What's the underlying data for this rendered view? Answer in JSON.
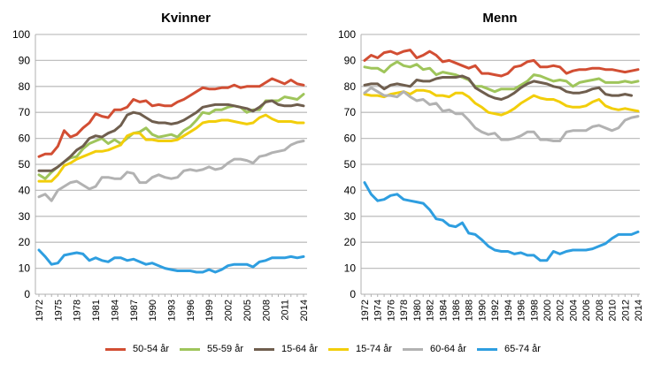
{
  "chart_data": [
    {
      "type": "line",
      "title": "Kvinner",
      "xlabel": "",
      "ylabel": "",
      "ylim": [
        0,
        100
      ],
      "yticks": [
        0,
        10,
        20,
        30,
        40,
        50,
        60,
        70,
        80,
        90,
        100
      ],
      "grid": true,
      "x": [
        1972,
        1973,
        1974,
        1975,
        1976,
        1977,
        1978,
        1979,
        1980,
        1981,
        1982,
        1983,
        1984,
        1985,
        1986,
        1987,
        1988,
        1989,
        1990,
        1991,
        1992,
        1993,
        1994,
        1995,
        1996,
        1997,
        1998,
        1999,
        2000,
        2001,
        2002,
        2003,
        2004,
        2005,
        2006,
        2007,
        2008,
        2009,
        2010,
        2011,
        2012,
        2013,
        2014
      ],
      "xtick_labels": [
        "1972",
        "1975",
        "1978",
        "1981",
        "1984",
        "1987",
        "1990",
        "1993",
        "1996",
        "1999",
        "2002",
        "2005",
        "2008",
        "2011",
        "2014"
      ],
      "series": [
        {
          "name": "50-54 år",
          "color": "#d24e33",
          "values": [
            53,
            54,
            54,
            57,
            63,
            60.5,
            61.5,
            64,
            66,
            69.5,
            68.5,
            68,
            71,
            71,
            72,
            75,
            74,
            74.5,
            72.5,
            73,
            72.5,
            72.5,
            74,
            75,
            76.5,
            78,
            79.5,
            79,
            79,
            79.5,
            79.5,
            80.5,
            79.5,
            80,
            80,
            80,
            81.5,
            83,
            82,
            81,
            82.5,
            81,
            80.5
          ]
        },
        {
          "name": "55-59 år",
          "color": "#9fc55b",
          "values": [
            46,
            44.5,
            47,
            49,
            51,
            52.5,
            53,
            56,
            58,
            59,
            60,
            58,
            59.5,
            58,
            60,
            62,
            62.5,
            64,
            61.5,
            60.5,
            61,
            61.5,
            60.5,
            63,
            64.5,
            67,
            70,
            69.5,
            71,
            71,
            72,
            72.5,
            72,
            70,
            71,
            71,
            74.5,
            74.5,
            74.5,
            76,
            75.5,
            75,
            77
          ]
        },
        {
          "name": "15-64 år",
          "color": "#6f5e4e",
          "values": [
            47.5,
            47.5,
            47.5,
            49,
            51,
            53,
            55.5,
            57,
            60,
            61,
            60.5,
            62,
            63,
            65,
            69,
            70,
            69.5,
            68,
            66.5,
            66,
            66,
            65.5,
            66,
            67,
            68.5,
            70,
            72,
            72.5,
            73,
            73,
            73,
            72.5,
            72,
            71.5,
            70.5,
            72,
            74,
            74.5,
            73,
            72.5,
            72.5,
            73,
            72.5
          ]
        },
        {
          "name": "15-74 år",
          "color": "#f2ce0b",
          "values": [
            43.5,
            43.5,
            43.5,
            46,
            49.5,
            50.5,
            52,
            53,
            54,
            55,
            55,
            55.5,
            56.5,
            57.5,
            61,
            62,
            62,
            59.5,
            59.5,
            59,
            59,
            59,
            59.5,
            61,
            62.5,
            64,
            66,
            66.5,
            66.5,
            67,
            67,
            66.5,
            66,
            65.5,
            66,
            68,
            69,
            67.5,
            66.5,
            66.5,
            66.5,
            66,
            66
          ]
        },
        {
          "name": "60-64 år",
          "color": "#b2b2b2",
          "values": [
            37.5,
            38.5,
            36,
            40,
            41.5,
            43,
            43.5,
            42,
            40.5,
            41.5,
            45,
            45,
            44.5,
            44.5,
            47,
            46.5,
            43,
            43,
            45,
            46,
            45,
            44.5,
            45,
            47.5,
            48,
            47.5,
            48,
            49,
            48,
            48.5,
            50.5,
            52,
            52,
            51.5,
            50.5,
            53,
            53.5,
            54.5,
            55,
            55.5,
            57.5,
            58.5,
            59
          ]
        },
        {
          "name": "65-74 år",
          "color": "#2e9ee0",
          "values": [
            17,
            14.5,
            11.5,
            12,
            15,
            15.5,
            16,
            15.5,
            13,
            14,
            13,
            12.5,
            14,
            14,
            13,
            13.5,
            12.5,
            11.5,
            12,
            11,
            10,
            9.5,
            9,
            9,
            9,
            8.5,
            8.5,
            9.5,
            8.5,
            9.5,
            11,
            11.5,
            11.5,
            11.5,
            10.5,
            12.5,
            13,
            14,
            14,
            14,
            14.5,
            14,
            14.5
          ]
        }
      ]
    },
    {
      "type": "line",
      "title": "Menn",
      "xlabel": "",
      "ylabel": "",
      "ylim": [
        0,
        100
      ],
      "yticks": [
        0,
        10,
        20,
        30,
        40,
        50,
        60,
        70,
        80,
        90,
        100
      ],
      "grid": true,
      "x": [
        1972,
        1973,
        1974,
        1975,
        1976,
        1977,
        1978,
        1979,
        1980,
        1981,
        1982,
        1983,
        1984,
        1985,
        1986,
        1987,
        1988,
        1989,
        1990,
        1991,
        1992,
        1993,
        1994,
        1995,
        1996,
        1997,
        1998,
        1999,
        2000,
        2001,
        2002,
        2003,
        2004,
        2005,
        2006,
        2007,
        2008,
        2009,
        2010,
        2011,
        2012,
        2013,
        2014
      ],
      "xtick_labels": [
        "1972",
        "1974",
        "1976",
        "1978",
        "1980",
        "1982",
        "1984",
        "1986",
        "1988",
        "1990",
        "1992",
        "1994",
        "1996",
        "1998",
        "2000",
        "2002",
        "2004",
        "2006",
        "2008",
        "2010",
        "2012",
        "2014"
      ],
      "series": [
        {
          "name": "50-54 år",
          "color": "#d24e33",
          "values": [
            90,
            92,
            91,
            93,
            93.5,
            92.5,
            93.5,
            94,
            91,
            92,
            93.5,
            92,
            89.5,
            90,
            89,
            88,
            87,
            88,
            85,
            85,
            84.5,
            84,
            85,
            87.5,
            88,
            89.5,
            90,
            87.5,
            87.5,
            88,
            87.5,
            85,
            86,
            86.5,
            86.5,
            87,
            87,
            86.5,
            86.5,
            86,
            85.5,
            86,
            86.5
          ]
        },
        {
          "name": "55-59 år",
          "color": "#9fc55b",
          "values": [
            87.5,
            87,
            87,
            85.5,
            88,
            89.5,
            88,
            87.5,
            88.5,
            86.5,
            87,
            84.5,
            85.5,
            85,
            84.5,
            83.5,
            82.5,
            80,
            80,
            79,
            78,
            79,
            79,
            79,
            80.5,
            82,
            84.5,
            84,
            83,
            82,
            82.5,
            82,
            80,
            81.5,
            82,
            82.5,
            83,
            81.5,
            81.5,
            81.5,
            82,
            81.5,
            82
          ]
        },
        {
          "name": "15-64 år",
          "color": "#6f5e4e",
          "values": [
            80.5,
            81,
            81,
            79,
            80.5,
            81,
            80.5,
            80,
            82.5,
            82,
            82,
            83,
            83.5,
            83.5,
            83.5,
            84,
            83,
            79.5,
            78,
            76.5,
            75.5,
            75,
            76,
            77.5,
            79.5,
            81,
            82,
            81.5,
            81,
            80,
            79.5,
            78,
            77.5,
            77.5,
            78,
            79,
            79.5,
            77,
            76.5,
            76.5,
            77,
            76.5,
            null
          ]
        },
        {
          "name": "15-74 år",
          "color": "#f2ce0b",
          "values": [
            77,
            76.5,
            76.5,
            76,
            77,
            77.5,
            78,
            77,
            78.5,
            78.5,
            78,
            76.5,
            76.5,
            76,
            77.5,
            77.5,
            76,
            73.5,
            72,
            70,
            69.5,
            69,
            70,
            71.5,
            73.5,
            75,
            76.5,
            75.5,
            75,
            75,
            74,
            72.5,
            72,
            72,
            72.5,
            74,
            75,
            72.5,
            71.5,
            71,
            71.5,
            71,
            70.5
          ]
        },
        {
          "name": "60-64 år",
          "color": "#b2b2b2",
          "values": [
            77.5,
            79.5,
            78,
            76.5,
            76.5,
            76,
            78,
            76,
            74.5,
            75,
            73,
            73.5,
            70.5,
            71,
            69.5,
            69.5,
            67,
            64,
            62.5,
            61.5,
            62,
            59.5,
            59.5,
            60,
            61,
            62.5,
            62.5,
            59.5,
            59.5,
            59,
            59,
            62.5,
            63,
            63,
            63,
            64.5,
            65,
            64,
            63,
            64,
            67,
            68,
            68.5
          ]
        },
        {
          "name": "65-74 år",
          "color": "#2e9ee0",
          "values": [
            43,
            38.5,
            36,
            36.5,
            38,
            38.5,
            36.5,
            36,
            35.5,
            35,
            32.5,
            29,
            28.5,
            26.5,
            26,
            27.5,
            23.5,
            23,
            21,
            18.5,
            17,
            16.5,
            16.5,
            15.5,
            16,
            15,
            15,
            13,
            13,
            16.5,
            15.5,
            16.5,
            17,
            17,
            17,
            17.5,
            18.5,
            19.5,
            21.5,
            23,
            23,
            23,
            24
          ]
        }
      ]
    }
  ],
  "legend": {
    "placement": "bottom",
    "entries": [
      {
        "label": "50-54 år",
        "color": "#d24e33"
      },
      {
        "label": "55-59 år",
        "color": "#9fc55b"
      },
      {
        "label": "15-64 år",
        "color": "#6f5e4e"
      },
      {
        "label": "15-74 år",
        "color": "#f2ce0b"
      },
      {
        "label": "60-64 år",
        "color": "#b2b2b2"
      },
      {
        "label": "65-74 år",
        "color": "#2e9ee0"
      }
    ]
  },
  "colors": {
    "grid": "#c0c0c0",
    "axis": "#b0b0b0"
  }
}
